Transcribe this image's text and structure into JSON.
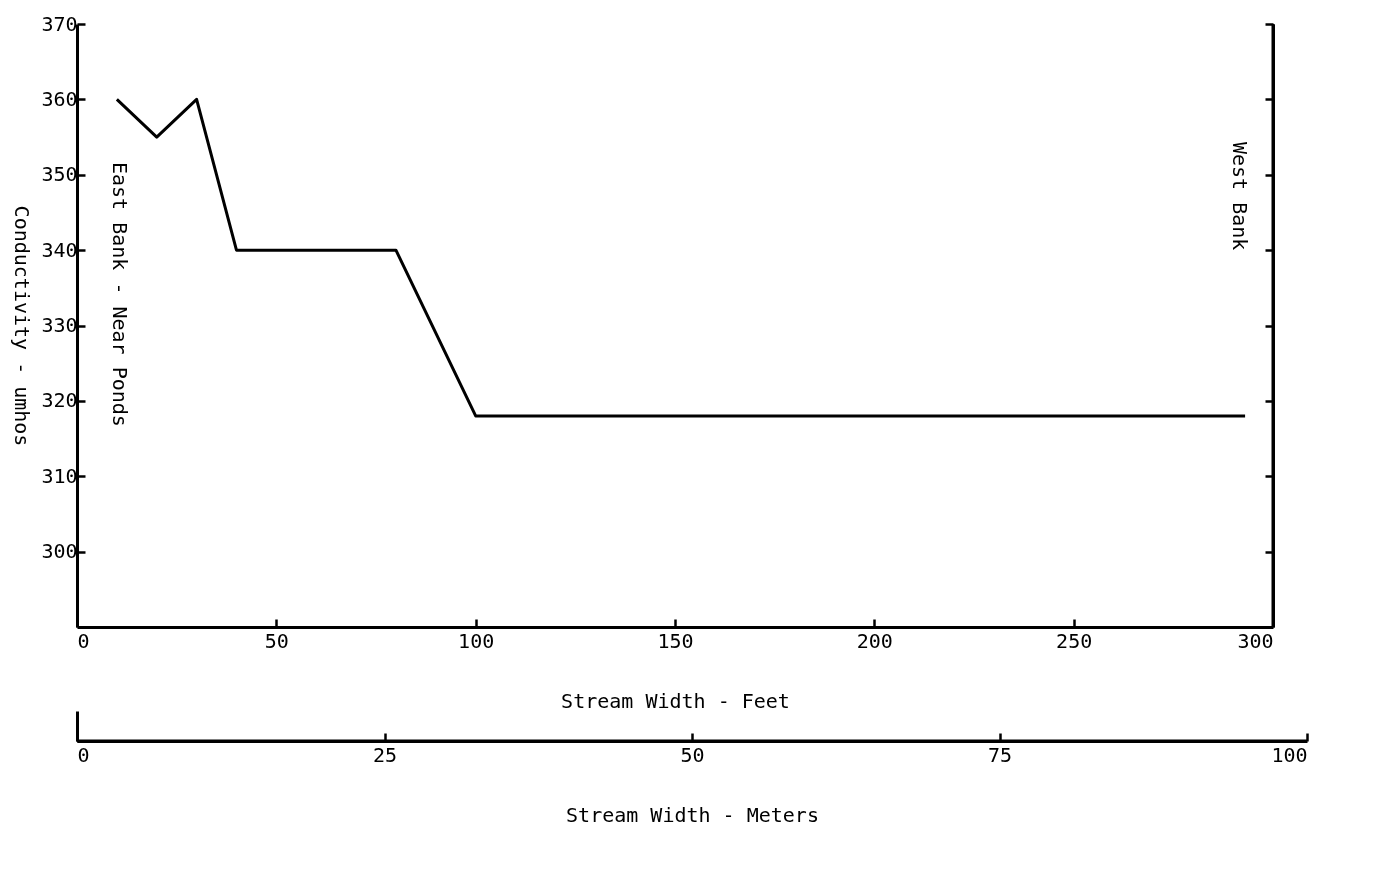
{
  "chart_data": {
    "type": "line",
    "x": [
      10,
      20,
      30,
      40,
      80,
      100,
      293
    ],
    "series": [
      {
        "color": "#000000",
        "values": [
          360,
          355,
          360,
          340,
          340,
          318,
          318
        ]
      }
    ],
    "xlim": [
      0,
      300
    ],
    "xticks": [
      0,
      50,
      100,
      150,
      200,
      250,
      300
    ],
    "ylim": [
      290,
      370
    ],
    "yticks": [
      300,
      310,
      320,
      330,
      340,
      350,
      360,
      370
    ],
    "x2lim": [
      0,
      100
    ],
    "x2ticks": [
      0,
      25,
      50,
      75,
      100
    ],
    "xlabel": "Stream Width - Feet",
    "x2label": "Stream Width - Meters",
    "ylabel": "Conductivity - umhos",
    "annotations": [
      "East Bank - Near Ponds",
      "West Bank"
    ],
    "grid": false,
    "legend": false,
    "marker": "none",
    "line_style": "solid"
  }
}
